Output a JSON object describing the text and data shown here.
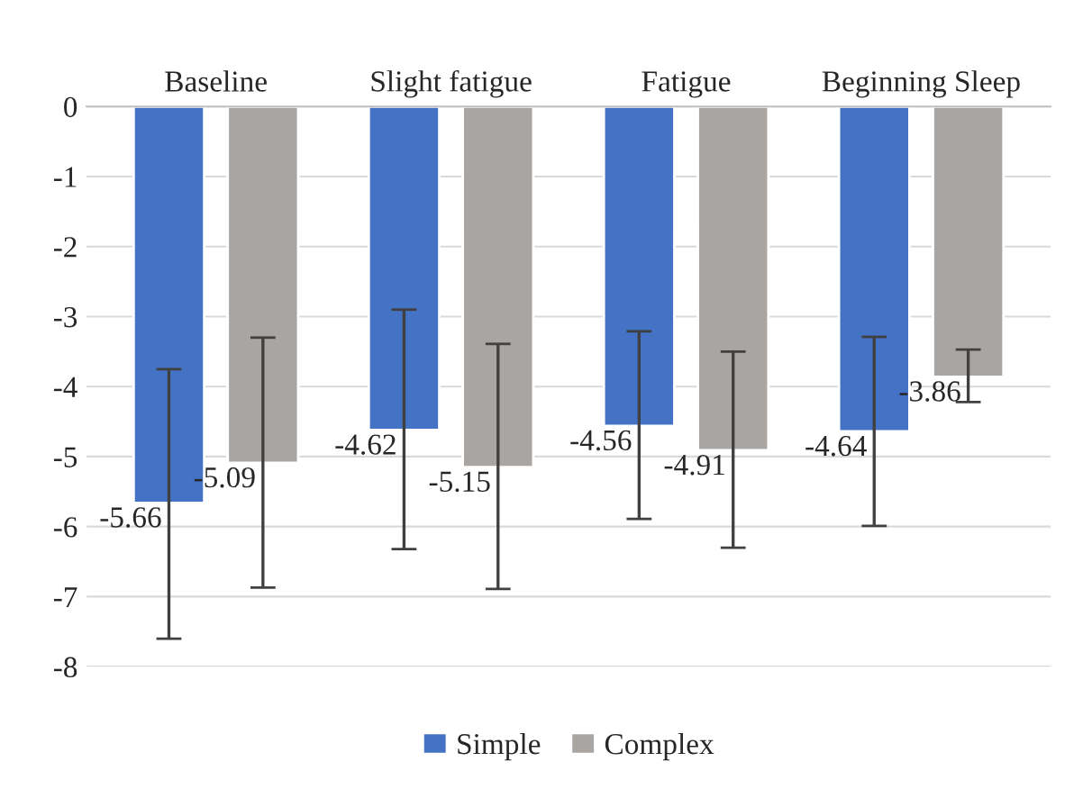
{
  "chart_data": {
    "type": "bar",
    "categories": [
      "Baseline",
      "Slight fatigue",
      "Fatigue",
      "Beginning Sleep"
    ],
    "series": [
      {
        "name": "Simple",
        "color": "#4472c4",
        "values": [
          -5.66,
          -4.62,
          -4.56,
          -4.64
        ],
        "errors": [
          [
            -7.6,
            -3.75
          ],
          [
            -6.32,
            -2.9
          ],
          [
            -5.89,
            -3.21
          ],
          [
            -5.99,
            -3.29
          ]
        ]
      },
      {
        "name": "Complex",
        "color": "#a9a5a3",
        "values": [
          -5.09,
          -5.15,
          -4.91,
          -3.86
        ],
        "errors": [
          [
            -6.87,
            -3.3
          ],
          [
            -6.89,
            -3.39
          ],
          [
            -6.3,
            -3.5
          ],
          [
            -4.22,
            -3.47
          ]
        ]
      }
    ],
    "ylim": [
      -8,
      0
    ],
    "yticks": [
      -8,
      -7,
      -6,
      -5,
      -4,
      -3,
      -2,
      -1,
      0
    ],
    "grid": "y",
    "legend": "bottom",
    "data_labels": true
  }
}
